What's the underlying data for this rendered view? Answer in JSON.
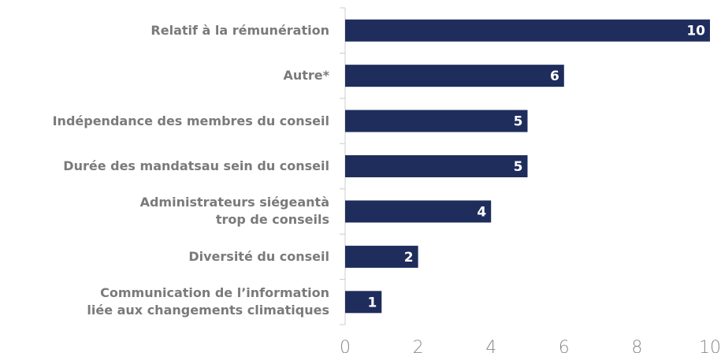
{
  "chart_data": {
    "type": "barh",
    "categories": [
      "Relatif à la rémunération",
      "Autre*",
      "Indépendance des membres du conseil",
      "Durée des mandatsau sein du conseil",
      "Administrateurs siégeantà\ntrop de conseils",
      "Diversité du conseil",
      "Communication de l’information\nliée aux changements climatiques"
    ],
    "values": [
      10,
      6,
      5,
      5,
      4,
      2,
      1
    ],
    "color": "#1f2d5c",
    "xlim": [
      0,
      10
    ],
    "xticks": [
      0,
      2,
      4,
      6,
      8,
      10
    ],
    "grid": false
  }
}
